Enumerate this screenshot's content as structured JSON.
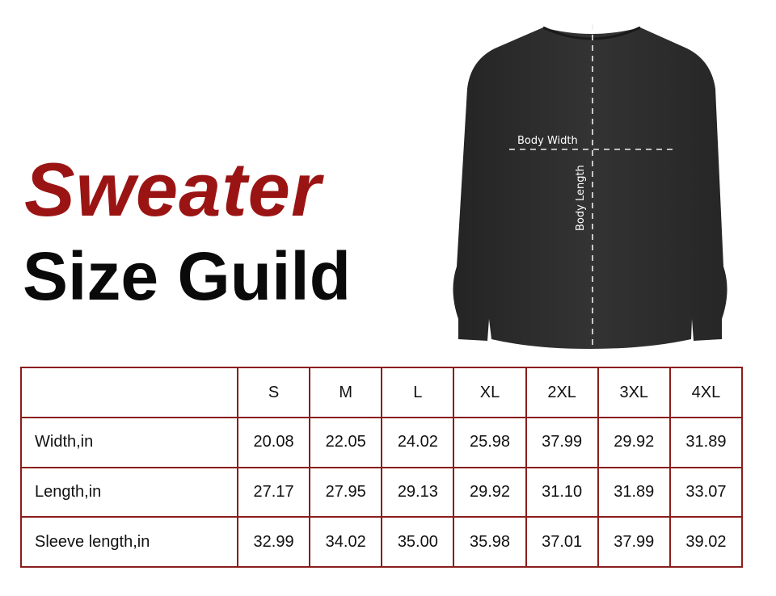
{
  "title": {
    "line1": "Sweater",
    "line2": "Size Guild"
  },
  "diagram": {
    "body_width_label": "Body Width",
    "body_length_label": "Body Length"
  },
  "colors": {
    "accent": "#9b1414",
    "border": "#8a1d1d",
    "garment": "#2b2b2b"
  },
  "table": {
    "headers": [
      "",
      "S",
      "M",
      "L",
      "XL",
      "2XL",
      "3XL",
      "4XL"
    ],
    "rows": [
      {
        "label": "Width,in",
        "values": [
          "20.08",
          "22.05",
          "24.02",
          "25.98",
          "37.99",
          "29.92",
          "31.89"
        ]
      },
      {
        "label": "Length,in",
        "values": [
          "27.17",
          "27.95",
          "29.13",
          "29.92",
          "31.10",
          "31.89",
          "33.07"
        ]
      },
      {
        "label": "Sleeve length,in",
        "values": [
          "32.99",
          "34.02",
          "35.00",
          "35.98",
          "37.01",
          "37.99",
          "39.02"
        ]
      }
    ]
  }
}
